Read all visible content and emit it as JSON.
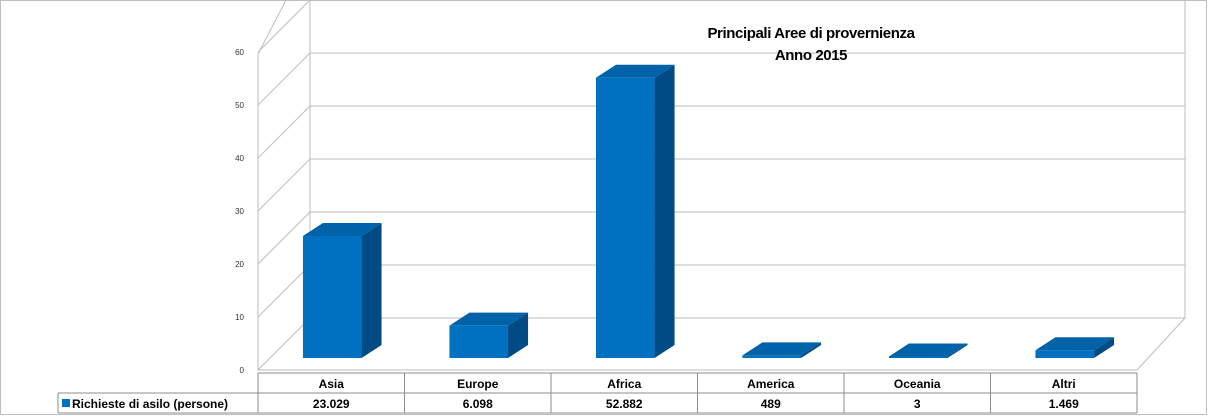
{
  "chart_data": {
    "type": "bar",
    "title": "Principali Aree di provernienza",
    "subtitle": "Anno 2015",
    "categories": [
      "Asia",
      "Europe",
      "Africa",
      "America",
      "Oceania",
      "Altri"
    ],
    "series": [
      {
        "name": "Richieste di asilo (persone)",
        "values": [
          23.029,
          6.098,
          52.882,
          0.489,
          0.003,
          1.469
        ],
        "labels": [
          "23.029",
          "6.098",
          "52.882",
          "489",
          "3",
          "1.469"
        ],
        "color": "#0070c0",
        "side_color": "#004b85",
        "top_color": "#0062a8"
      }
    ],
    "yticks": [
      0,
      10,
      20,
      30,
      40,
      50,
      60
    ],
    "ylim": [
      0,
      60
    ],
    "grid": true,
    "legend": "data-table",
    "three_d": true
  }
}
